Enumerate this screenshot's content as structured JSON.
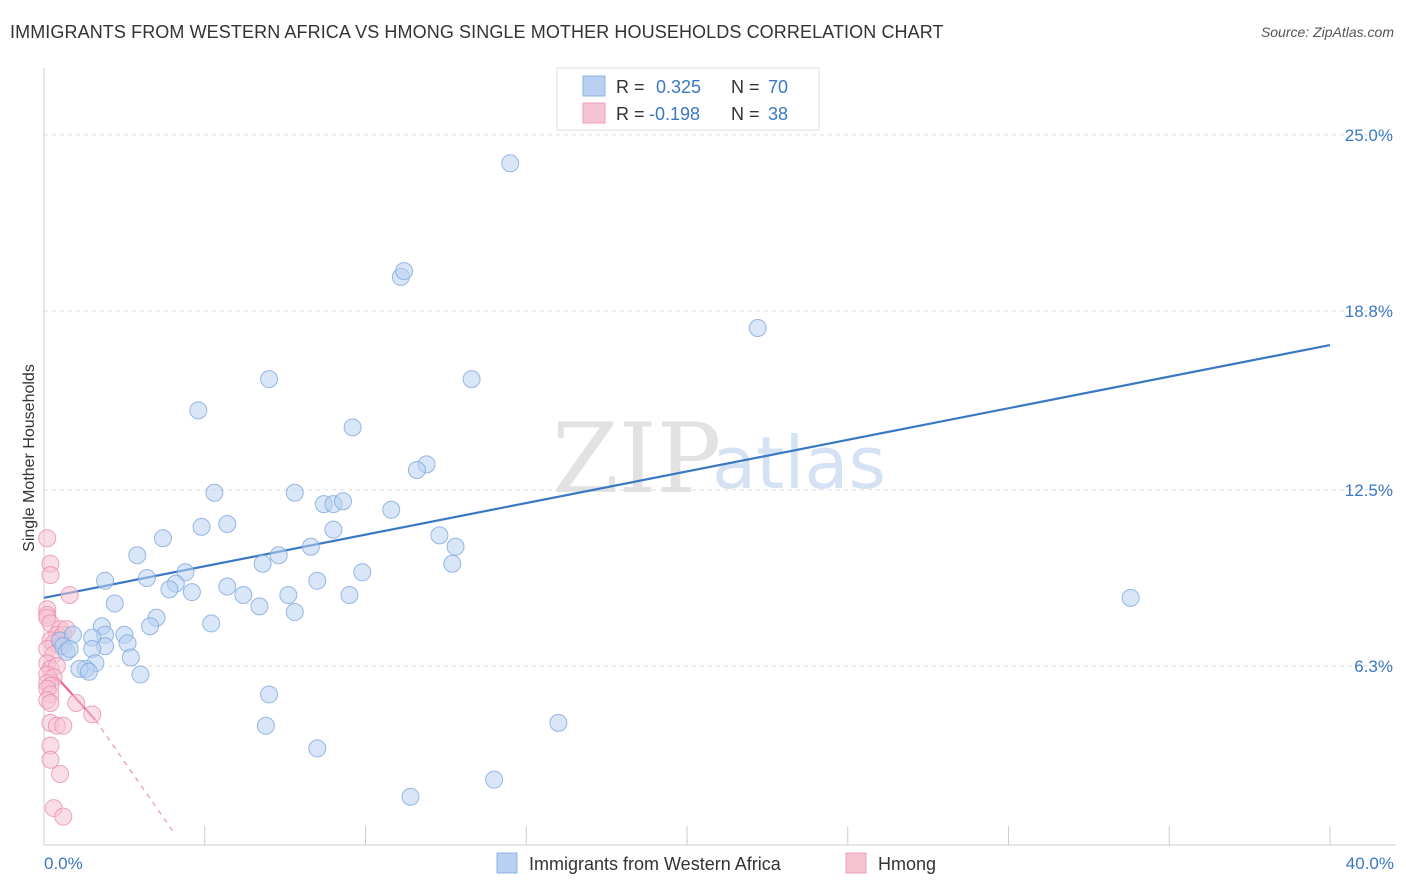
{
  "title": "IMMIGRANTS FROM WESTERN AFRICA VS HMONG SINGLE MOTHER HOUSEHOLDS CORRELATION CHART",
  "source": "Source: ZipAtlas.com",
  "watermark": {
    "zip": "ZIP",
    "atlas": "atlas"
  },
  "colors": {
    "blue": "#3a78c4",
    "blue_fill": "#b8d1f0",
    "pink": "#e8658f",
    "pink_fill": "#f6c3d3",
    "grid": "#dddddd"
  },
  "legend": {
    "rows": [
      {
        "r_label": "R =",
        "r_value": "0.325",
        "n_label": "N =",
        "n_value": "70"
      },
      {
        "r_label": "R =",
        "r_value": "-0.198",
        "n_label": "N =",
        "n_value": "38"
      }
    ]
  },
  "chart_data": {
    "type": "scatter",
    "title": "IMMIGRANTS FROM WESTERN AFRICA VS HMONG SINGLE MOTHER HOUSEHOLDS CORRELATION CHART",
    "xlabel": "",
    "ylabel": "Single Mother Households",
    "xlim": [
      0,
      40
    ],
    "ylim": [
      0,
      27
    ],
    "x_tick_labels": [
      "0.0%",
      "40.0%"
    ],
    "y_ticks": [
      6.3,
      12.5,
      18.8,
      25.0
    ],
    "y_tick_labels": [
      "6.3%",
      "12.5%",
      "18.8%",
      "25.0%"
    ],
    "series": [
      {
        "name": "Immigrants from Western Africa",
        "color": "#3a78c4",
        "r": 0.325,
        "n": 70,
        "trend": {
          "x": [
            0,
            40
          ],
          "y": [
            8.7,
            17.6
          ]
        },
        "points": [
          [
            14.5,
            24.0
          ],
          [
            11.1,
            20.0
          ],
          [
            11.2,
            20.2
          ],
          [
            22.2,
            18.2
          ],
          [
            7.0,
            16.4
          ],
          [
            13.3,
            16.4
          ],
          [
            4.8,
            15.3
          ],
          [
            9.6,
            14.7
          ],
          [
            11.9,
            13.4
          ],
          [
            11.6,
            13.2
          ],
          [
            5.3,
            12.4
          ],
          [
            7.8,
            12.4
          ],
          [
            8.7,
            12.0
          ],
          [
            9.0,
            12.0
          ],
          [
            9.3,
            12.1
          ],
          [
            10.8,
            11.8
          ],
          [
            5.7,
            11.3
          ],
          [
            4.9,
            11.2
          ],
          [
            9.0,
            11.1
          ],
          [
            12.3,
            10.9
          ],
          [
            3.7,
            10.8
          ],
          [
            8.3,
            10.5
          ],
          [
            12.8,
            10.5
          ],
          [
            2.9,
            10.2
          ],
          [
            7.3,
            10.2
          ],
          [
            6.8,
            9.9
          ],
          [
            12.7,
            9.9
          ],
          [
            9.9,
            9.6
          ],
          [
            4.4,
            9.6
          ],
          [
            3.2,
            9.4
          ],
          [
            8.5,
            9.3
          ],
          [
            1.9,
            9.3
          ],
          [
            5.7,
            9.1
          ],
          [
            4.1,
            9.2
          ],
          [
            3.9,
            9.0
          ],
          [
            4.6,
            8.9
          ],
          [
            7.6,
            8.8
          ],
          [
            6.2,
            8.8
          ],
          [
            9.5,
            8.8
          ],
          [
            2.2,
            8.5
          ],
          [
            6.7,
            8.4
          ],
          [
            7.8,
            8.2
          ],
          [
            3.5,
            8.0
          ],
          [
            5.2,
            7.8
          ],
          [
            1.8,
            7.7
          ],
          [
            3.3,
            7.7
          ],
          [
            1.9,
            7.4
          ],
          [
            2.5,
            7.4
          ],
          [
            1.5,
            7.3
          ],
          [
            2.6,
            7.1
          ],
          [
            1.9,
            7.0
          ],
          [
            1.5,
            6.9
          ],
          [
            2.7,
            6.6
          ],
          [
            1.6,
            6.4
          ],
          [
            1.3,
            6.2
          ],
          [
            1.1,
            6.2
          ],
          [
            1.4,
            6.1
          ],
          [
            3.0,
            6.0
          ],
          [
            7.0,
            5.3
          ],
          [
            6.9,
            4.2
          ],
          [
            16.0,
            4.3
          ],
          [
            8.5,
            3.4
          ],
          [
            14.0,
            2.3
          ],
          [
            11.4,
            1.7
          ],
          [
            33.8,
            8.7
          ],
          [
            0.5,
            7.2
          ],
          [
            0.9,
            7.4
          ],
          [
            0.6,
            7.0
          ],
          [
            0.7,
            6.8
          ],
          [
            0.8,
            6.9
          ]
        ]
      },
      {
        "name": "Hmong",
        "color": "#e8658f",
        "r": -0.198,
        "n": 38,
        "trend": {
          "x": [
            0,
            1.6
          ],
          "y": [
            6.4,
            4.4
          ]
        },
        "trend_extension": {
          "x": [
            1.6,
            4.0
          ],
          "y": [
            4.4,
            0.5
          ]
        },
        "points": [
          [
            0.1,
            10.8
          ],
          [
            0.2,
            9.9
          ],
          [
            0.2,
            9.5
          ],
          [
            0.8,
            8.8
          ],
          [
            0.1,
            8.3
          ],
          [
            0.1,
            8.1
          ],
          [
            0.1,
            8.0
          ],
          [
            0.2,
            7.8
          ],
          [
            0.5,
            7.6
          ],
          [
            0.4,
            7.4
          ],
          [
            0.6,
            7.4
          ],
          [
            0.7,
            7.6
          ],
          [
            0.2,
            7.2
          ],
          [
            0.3,
            7.1
          ],
          [
            0.5,
            7.0
          ],
          [
            0.1,
            6.9
          ],
          [
            0.3,
            6.7
          ],
          [
            0.1,
            6.4
          ],
          [
            0.2,
            6.2
          ],
          [
            0.4,
            6.3
          ],
          [
            0.1,
            6.0
          ],
          [
            0.3,
            5.9
          ],
          [
            0.1,
            5.7
          ],
          [
            0.2,
            5.6
          ],
          [
            0.1,
            5.5
          ],
          [
            0.2,
            5.3
          ],
          [
            0.1,
            5.1
          ],
          [
            0.2,
            5.0
          ],
          [
            1.0,
            5.0
          ],
          [
            1.5,
            4.6
          ],
          [
            0.2,
            4.3
          ],
          [
            0.4,
            4.2
          ],
          [
            0.6,
            4.2
          ],
          [
            0.2,
            3.5
          ],
          [
            0.2,
            3.0
          ],
          [
            0.5,
            2.5
          ],
          [
            0.3,
            1.3
          ],
          [
            0.6,
            1.0
          ]
        ]
      }
    ]
  }
}
